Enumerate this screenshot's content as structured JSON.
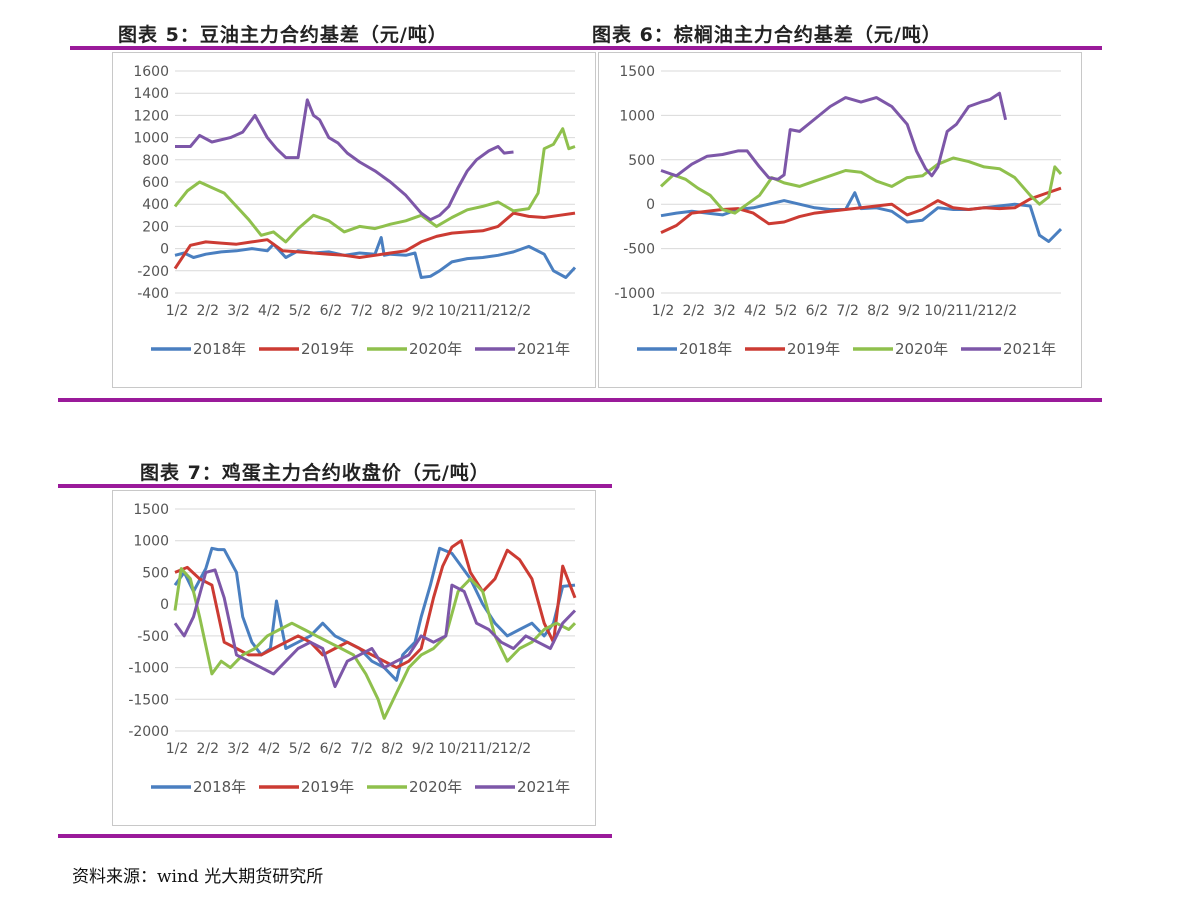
{
  "page": {
    "source": "资料来源：wind  光大期货研究所"
  },
  "colors": {
    "2018年": "#4a7fc0",
    "2019年": "#cc3b33",
    "2020年": "#8fc04d",
    "2021年": "#7d57a8",
    "rule": "#9a1a9a",
    "grid": "#d9d9d9"
  },
  "chart_data": [
    {
      "id": "fig5",
      "type": "line",
      "title": "图表 5：豆油主力合约基差（元/吨）",
      "ylim": [
        -400,
        1600
      ],
      "yticks": [
        -400,
        -200,
        0,
        200,
        400,
        600,
        800,
        1000,
        1200,
        1400,
        1600
      ],
      "categories": [
        "1/2",
        "2/2",
        "3/2",
        "4/2",
        "5/2",
        "6/2",
        "7/2",
        "8/2",
        "9/2",
        "10/2",
        "11/2",
        "12/2"
      ],
      "xlim": [
        0,
        13
      ],
      "legend": "bottom",
      "series": [
        {
          "name": "2018年",
          "x": [
            0,
            0.3,
            0.6,
            1.0,
            1.5,
            2.0,
            2.5,
            3.0,
            3.2,
            3.6,
            4.0,
            4.5,
            5.0,
            5.5,
            6.0,
            6.5,
            6.7,
            6.8,
            7.0,
            7.5,
            7.8,
            8.0,
            8.3,
            8.6,
            9.0,
            9.5,
            10.0,
            10.5,
            11.0,
            11.5,
            12.0,
            12.3,
            12.7,
            13.0
          ],
          "y": [
            -60,
            -40,
            -80,
            -50,
            -30,
            -20,
            0,
            -20,
            40,
            -80,
            -20,
            -40,
            -30,
            -60,
            -40,
            -50,
            100,
            -60,
            -50,
            -60,
            -40,
            -260,
            -250,
            -200,
            -120,
            -90,
            -80,
            -60,
            -30,
            20,
            -50,
            -200,
            -260,
            -170
          ]
        },
        {
          "name": "2019年",
          "x": [
            0,
            0.5,
            1.0,
            1.5,
            2.0,
            2.5,
            3.0,
            3.5,
            4.0,
            4.5,
            5.0,
            5.5,
            6.0,
            6.5,
            7.0,
            7.5,
            8.0,
            8.5,
            9.0,
            9.5,
            10.0,
            10.5,
            11.0,
            11.5,
            12.0,
            12.5,
            13.0
          ],
          "y": [
            -180,
            30,
            60,
            50,
            40,
            60,
            80,
            -20,
            -30,
            -40,
            -50,
            -60,
            -80,
            -60,
            -40,
            -20,
            60,
            110,
            140,
            150,
            160,
            200,
            320,
            290,
            280,
            300,
            320
          ]
        },
        {
          "name": "2020年",
          "x": [
            0,
            0.4,
            0.8,
            1.2,
            1.6,
            2.0,
            2.4,
            2.8,
            3.2,
            3.6,
            4.0,
            4.5,
            5.0,
            5.5,
            6.0,
            6.5,
            7.0,
            7.5,
            8.0,
            8.5,
            9.0,
            9.5,
            10.0,
            10.5,
            11.0,
            11.5,
            11.8,
            12.0,
            12.3,
            12.6,
            12.8,
            13.0
          ],
          "y": [
            380,
            520,
            600,
            550,
            500,
            380,
            260,
            120,
            150,
            60,
            180,
            300,
            250,
            150,
            200,
            180,
            220,
            250,
            300,
            200,
            280,
            350,
            380,
            420,
            340,
            360,
            500,
            900,
            940,
            1080,
            900,
            920
          ]
        },
        {
          "name": "2021年",
          "x": [
            0,
            0.5,
            0.8,
            1.2,
            1.8,
            2.2,
            2.6,
            3.0,
            3.3,
            3.6,
            4.0,
            4.3,
            4.5,
            4.7,
            5.0,
            5.3,
            5.6,
            6.0,
            6.5,
            7.0,
            7.5,
            8.0,
            8.3,
            8.6,
            8.9,
            9.2,
            9.5,
            9.8,
            10.2,
            10.5,
            10.7,
            11.0
          ],
          "y": [
            920,
            920,
            1020,
            960,
            1000,
            1050,
            1200,
            1000,
            900,
            820,
            820,
            1340,
            1200,
            1160,
            1000,
            950,
            860,
            780,
            700,
            600,
            480,
            320,
            260,
            300,
            380,
            550,
            700,
            800,
            880,
            920,
            860,
            870
          ]
        }
      ]
    },
    {
      "id": "fig6",
      "type": "line",
      "title": "图表 6：棕榈油主力合约基差（元/吨）",
      "ylim": [
        -1000,
        1500
      ],
      "yticks": [
        -1000,
        -500,
        0,
        500,
        1000,
        1500
      ],
      "categories": [
        "1/2",
        "2/2",
        "3/2",
        "4/2",
        "5/2",
        "6/2",
        "7/2",
        "8/2",
        "9/2",
        "10/2",
        "11/2",
        "12/2"
      ],
      "xlim": [
        0,
        13
      ],
      "legend": "bottom",
      "series": [
        {
          "name": "2018年",
          "x": [
            0,
            0.5,
            1.0,
            1.5,
            2.0,
            2.5,
            3.0,
            3.5,
            4.0,
            4.5,
            5.0,
            5.5,
            6.0,
            6.3,
            6.5,
            7.0,
            7.5,
            8.0,
            8.5,
            9.0,
            9.5,
            10.0,
            10.5,
            11.0,
            11.5,
            12.0,
            12.3,
            12.6,
            13.0
          ],
          "y": [
            -130,
            -100,
            -80,
            -100,
            -120,
            -60,
            -40,
            0,
            40,
            0,
            -40,
            -60,
            -60,
            130,
            -50,
            -40,
            -80,
            -200,
            -180,
            -40,
            -60,
            -60,
            -40,
            -20,
            0,
            -20,
            -350,
            -420,
            -280
          ]
        },
        {
          "name": "2019年",
          "x": [
            0,
            0.5,
            1.0,
            1.5,
            2.0,
            2.5,
            3.0,
            3.5,
            4.0,
            4.5,
            5.0,
            5.5,
            6.0,
            6.5,
            7.0,
            7.5,
            8.0,
            8.5,
            9.0,
            9.5,
            10.0,
            10.5,
            11.0,
            11.5,
            12.0,
            12.5,
            13.0
          ],
          "y": [
            -320,
            -240,
            -100,
            -80,
            -60,
            -50,
            -100,
            -220,
            -200,
            -140,
            -100,
            -80,
            -60,
            -40,
            -20,
            0,
            -120,
            -60,
            40,
            -40,
            -60,
            -40,
            -50,
            -40,
            60,
            120,
            180
          ]
        },
        {
          "name": "2020年",
          "x": [
            0,
            0.4,
            0.8,
            1.2,
            1.6,
            2.0,
            2.4,
            2.8,
            3.2,
            3.6,
            4.0,
            4.5,
            5.0,
            5.5,
            6.0,
            6.5,
            7.0,
            7.5,
            8.0,
            8.5,
            9.0,
            9.5,
            10.0,
            10.5,
            11.0,
            11.5,
            12.0,
            12.3,
            12.6,
            12.8,
            13.0
          ],
          "y": [
            200,
            330,
            280,
            180,
            100,
            -60,
            -100,
            0,
            100,
            300,
            240,
            200,
            260,
            320,
            380,
            360,
            260,
            200,
            300,
            320,
            450,
            520,
            480,
            420,
            400,
            300,
            100,
            0,
            80,
            420,
            340
          ]
        },
        {
          "name": "2021年",
          "x": [
            0,
            0.5,
            1.0,
            1.5,
            2.0,
            2.5,
            2.8,
            3.2,
            3.5,
            3.8,
            4.0,
            4.2,
            4.5,
            5.0,
            5.5,
            6.0,
            6.5,
            7.0,
            7.5,
            8.0,
            8.3,
            8.6,
            8.8,
            9.0,
            9.3,
            9.6,
            10.0,
            10.4,
            10.7,
            11.0,
            11.2
          ],
          "y": [
            380,
            320,
            450,
            540,
            560,
            600,
            600,
            420,
            300,
            280,
            330,
            840,
            820,
            960,
            1100,
            1200,
            1150,
            1200,
            1100,
            900,
            600,
            400,
            320,
            420,
            820,
            900,
            1100,
            1150,
            1180,
            1250,
            950
          ]
        }
      ]
    },
    {
      "id": "fig7",
      "type": "line",
      "title": "图表 7：鸡蛋主力合约收盘价（元/吨）",
      "ylim": [
        -2000,
        1500
      ],
      "yticks": [
        -2000,
        -1500,
        -1000,
        -500,
        0,
        500,
        1000,
        1500
      ],
      "categories": [
        "1/2",
        "2/2",
        "3/2",
        "4/2",
        "5/2",
        "6/2",
        "7/2",
        "8/2",
        "9/2",
        "10/2",
        "11/2",
        "12/2"
      ],
      "xlim": [
        0,
        13
      ],
      "legend": "bottom",
      "series": [
        {
          "name": "2018年",
          "x": [
            0,
            0.3,
            0.6,
            1.0,
            1.2,
            1.4,
            1.6,
            2.0,
            2.2,
            2.5,
            2.8,
            3.1,
            3.3,
            3.6,
            4.0,
            4.4,
            4.8,
            5.2,
            5.6,
            6.0,
            6.4,
            6.8,
            7.2,
            7.4,
            7.6,
            7.8,
            8.0,
            8.3,
            8.6,
            9.0,
            9.3,
            9.6,
            10.0,
            10.4,
            10.8,
            11.2,
            11.6,
            12.0,
            12.3,
            12.6,
            13.0
          ],
          "y": [
            300,
            500,
            200,
            560,
            880,
            860,
            860,
            500,
            -200,
            -600,
            -800,
            -700,
            50,
            -700,
            -600,
            -500,
            -300,
            -500,
            -600,
            -700,
            -900,
            -1000,
            -1200,
            -800,
            -700,
            -600,
            -200,
            300,
            880,
            800,
            600,
            400,
            0,
            -300,
            -500,
            -400,
            -300,
            -500,
            -300,
            280,
            300
          ]
        },
        {
          "name": "2019年",
          "x": [
            0,
            0.4,
            0.8,
            1.2,
            1.6,
            2.0,
            2.4,
            2.8,
            3.2,
            3.6,
            4.0,
            4.4,
            4.8,
            5.2,
            5.6,
            6.0,
            6.4,
            6.8,
            7.2,
            7.6,
            8.0,
            8.4,
            8.7,
            9.0,
            9.3,
            9.6,
            10.0,
            10.4,
            10.8,
            11.2,
            11.6,
            12.0,
            12.3,
            12.6,
            13.0
          ],
          "y": [
            500,
            580,
            400,
            300,
            -600,
            -700,
            -800,
            -800,
            -700,
            -600,
            -500,
            -600,
            -800,
            -700,
            -600,
            -700,
            -800,
            -900,
            -1000,
            -900,
            -700,
            100,
            600,
            900,
            1000,
            500,
            200,
            400,
            850,
            700,
            400,
            -300,
            -600,
            600,
            100
          ]
        },
        {
          "name": "2020年",
          "x": [
            0,
            0.2,
            0.5,
            0.8,
            1.2,
            1.5,
            1.8,
            2.2,
            2.6,
            3.0,
            3.4,
            3.8,
            4.2,
            4.6,
            5.0,
            5.4,
            5.8,
            6.2,
            6.6,
            6.8,
            7.0,
            7.2,
            7.4,
            7.6,
            8.0,
            8.4,
            8.8,
            9.2,
            9.6,
            10.0,
            10.4,
            10.8,
            11.2,
            11.6,
            12.0,
            12.4,
            12.8,
            13.0
          ],
          "y": [
            -100,
            560,
            400,
            -200,
            -1100,
            -900,
            -1000,
            -800,
            -700,
            -500,
            -400,
            -300,
            -400,
            -500,
            -600,
            -700,
            -800,
            -1100,
            -1500,
            -1800,
            -1600,
            -1400,
            -1200,
            -1000,
            -800,
            -700,
            -500,
            200,
            400,
            200,
            -500,
            -900,
            -700,
            -600,
            -400,
            -300,
            -400,
            -300
          ]
        },
        {
          "name": "2021年",
          "x": [
            0,
            0.3,
            0.6,
            1.0,
            1.3,
            1.6,
            2.0,
            2.4,
            2.8,
            3.2,
            3.6,
            4.0,
            4.4,
            4.8,
            5.2,
            5.6,
            6.0,
            6.4,
            6.8,
            7.2,
            7.6,
            8.0,
            8.4,
            8.8,
            9.0,
            9.4,
            9.8,
            10.2,
            10.6,
            11.0,
            11.4,
            11.8,
            12.2,
            12.6,
            13.0
          ],
          "y": [
            -300,
            -500,
            -200,
            500,
            540,
            100,
            -800,
            -900,
            -1000,
            -1100,
            -900,
            -700,
            -600,
            -700,
            -1300,
            -900,
            -800,
            -700,
            -1000,
            -900,
            -800,
            -500,
            -600,
            -500,
            300,
            200,
            -300,
            -400,
            -600,
            -700,
            -500,
            -600,
            -700,
            -300,
            -100
          ]
        }
      ]
    }
  ]
}
